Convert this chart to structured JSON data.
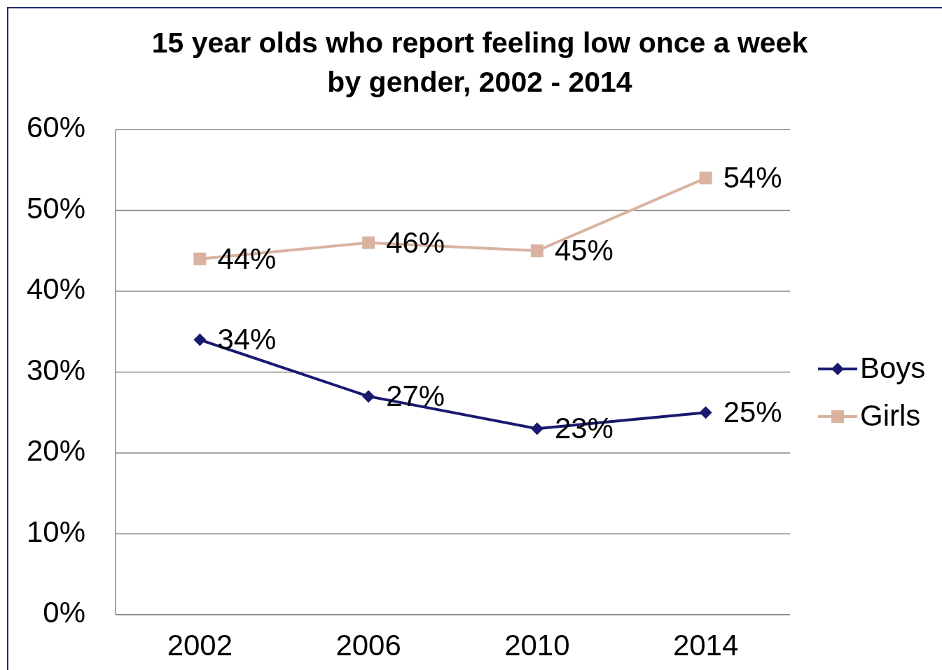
{
  "chart_data": {
    "type": "line",
    "title": "15 year olds who report feeling low once a week by gender, 2002 - 2014",
    "categories": [
      "2002",
      "2006",
      "2010",
      "2014"
    ],
    "series": [
      {
        "name": "Boys",
        "color": "#191970",
        "marker": "diamond",
        "values": [
          34,
          27,
          23,
          25
        ],
        "value_labels": [
          "34%",
          "27%",
          "23%",
          "25%"
        ]
      },
      {
        "name": "Girls",
        "color": "#d9b3a0",
        "marker": "square",
        "values": [
          44,
          46,
          45,
          54
        ],
        "value_labels": [
          "44%",
          "46%",
          "45%",
          "54%"
        ]
      }
    ],
    "ylim": [
      0,
      60
    ],
    "yticks": [
      {
        "value": 0,
        "label": "0%"
      },
      {
        "value": 10,
        "label": "10%"
      },
      {
        "value": 20,
        "label": "20%"
      },
      {
        "value": 30,
        "label": "30%"
      },
      {
        "value": 40,
        "label": "40%"
      },
      {
        "value": 50,
        "label": "50%"
      },
      {
        "value": 60,
        "label": "60%"
      }
    ],
    "grid": "y",
    "legend": "right"
  }
}
